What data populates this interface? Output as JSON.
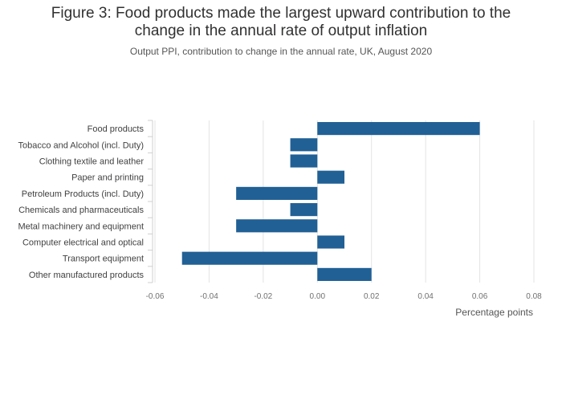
{
  "header": {
    "title_line1": "Figure 3: Food products made the largest upward contribution to the",
    "title_line2": "change in the annual rate of output inflation",
    "subtitle": "Output PPI, contribution to change in the annual rate, UK, August 2020"
  },
  "chart_data": {
    "type": "bar",
    "orientation": "horizontal",
    "title": "Figure 3: Food products made the largest upward contribution to the change in the annual rate of output inflation",
    "subtitle": "Output PPI, contribution to change in the annual rate, UK, August 2020",
    "xlabel": "Percentage points",
    "ylabel": "",
    "categories": [
      "Food products",
      "Tobacco and Alcohol (incl. Duty)",
      "Clothing textile and leather",
      "Paper and printing",
      "Petroleum Products (incl. Duty)",
      "Chemicals and pharmaceuticals",
      "Metal machinery and equipment",
      "Computer electrical and optical",
      "Transport equipment",
      "Other manufactured products"
    ],
    "values": [
      0.06,
      -0.01,
      -0.01,
      0.01,
      -0.03,
      -0.01,
      -0.03,
      0.01,
      -0.05,
      0.02
    ],
    "xlim": [
      -0.06,
      0.08
    ],
    "xticks": [
      "-0.06",
      "-0.04",
      "-0.02",
      "0.00",
      "0.02",
      "0.04",
      "0.06",
      "0.08"
    ],
    "bar_color": "#206095",
    "grid": true,
    "legend": "none"
  }
}
